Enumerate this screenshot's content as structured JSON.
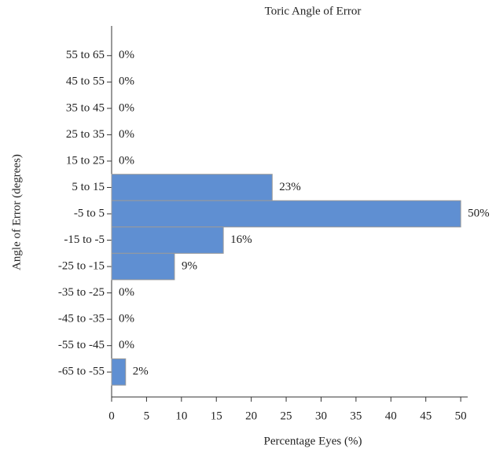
{
  "chart_data": {
    "type": "barh",
    "title": "Toric Angle of Error",
    "x_label": "Percentage Eyes (%)",
    "y_label": "Angle of Error (degrees)",
    "categories": [
      "55 to 65",
      "45 to 55",
      "35 to 45",
      "25 to 35",
      "15 to 25",
      "5 to 15",
      "-5 to 5",
      "-15 to -5",
      "-25 to -15",
      "-35 to -25",
      "-45 to -35",
      "-55 to -45",
      "-65 to -55"
    ],
    "values": [
      0,
      0,
      0,
      0,
      0,
      23,
      50,
      16,
      9,
      0,
      0,
      0,
      2
    ],
    "value_labels": [
      "0%",
      "0%",
      "0%",
      "0%",
      "0%",
      "23%",
      "50%",
      "16%",
      "9%",
      "0%",
      "0%",
      "0%",
      "2%"
    ],
    "color": "#5f8fd2",
    "xlim": [
      0,
      51
    ],
    "xticks": [
      0,
      5,
      10,
      15,
      20,
      25,
      30,
      35,
      40,
      45,
      50
    ]
  }
}
